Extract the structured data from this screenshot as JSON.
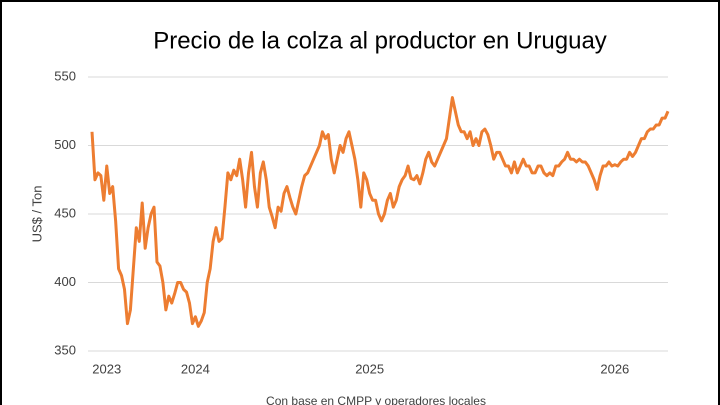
{
  "chart_data": {
    "type": "line",
    "title": "Precio de la colza al productor en Uruguay",
    "y_label": "US$ / Ton",
    "source": "Con base en CMPP y operadores locales",
    "color": "#ed7d31",
    "grid": true,
    "ylim": [
      350,
      550
    ],
    "yticks": [
      350,
      400,
      450,
      500,
      550
    ],
    "categories": [
      null,
      null,
      null,
      null,
      null,
      "2023",
      null,
      null,
      null,
      null,
      null,
      null,
      null,
      null,
      null,
      null,
      null,
      null,
      null,
      null,
      null,
      null,
      null,
      null,
      null,
      null,
      null,
      null,
      null,
      null,
      null,
      null,
      null,
      null,
      null,
      "2024",
      null,
      null,
      null,
      null,
      null,
      null,
      null,
      null,
      null,
      null,
      null,
      null,
      null,
      null,
      null,
      null,
      null,
      null,
      null,
      null,
      null,
      null,
      null,
      null,
      null,
      null,
      null,
      null,
      null,
      null,
      null,
      null,
      null,
      null,
      null,
      null,
      null,
      null,
      null,
      null,
      null,
      null,
      null,
      null,
      null,
      null,
      null,
      null,
      null,
      null,
      null,
      null,
      null,
      null,
      null,
      null,
      null,
      null,
      "2025",
      null,
      null,
      null,
      null,
      null,
      null,
      null,
      null,
      null,
      null,
      null,
      null,
      null,
      null,
      null,
      null,
      null,
      null,
      null,
      null,
      null,
      null,
      null,
      null,
      null,
      null,
      null,
      null,
      null,
      null,
      null,
      null,
      null,
      null,
      null,
      null,
      null,
      null,
      null,
      null,
      null,
      null,
      null,
      null,
      null,
      null,
      null,
      null,
      null,
      null,
      null,
      null,
      null,
      null,
      null,
      null,
      null,
      null,
      null,
      null,
      null,
      null,
      null,
      null,
      null,
      null,
      null,
      null,
      null,
      null,
      null,
      null,
      null,
      null,
      null,
      null,
      null,
      null,
      null,
      null,
      null,
      null,
      "2026",
      null,
      null,
      null,
      null,
      null,
      null,
      null,
      null,
      null,
      null,
      null,
      null,
      null,
      null,
      null,
      null,
      null,
      null
    ],
    "values": [
      510,
      475,
      480,
      478,
      460,
      485,
      465,
      470,
      445,
      410,
      405,
      395,
      370,
      380,
      410,
      440,
      430,
      458,
      425,
      440,
      450,
      455,
      415,
      412,
      400,
      380,
      390,
      385,
      392,
      400,
      400,
      395,
      393,
      385,
      370,
      375,
      368,
      372,
      378,
      400,
      410,
      430,
      440,
      430,
      432,
      455,
      480,
      475,
      482,
      478,
      490,
      475,
      455,
      480,
      495,
      470,
      455,
      480,
      488,
      475,
      455,
      448,
      440,
      455,
      452,
      465,
      470,
      462,
      455,
      450,
      460,
      470,
      478,
      480,
      485,
      490,
      495,
      500,
      510,
      505,
      508,
      490,
      480,
      490,
      500,
      495,
      505,
      510,
      500,
      490,
      475,
      455,
      480,
      475,
      465,
      460,
      460,
      450,
      445,
      450,
      460,
      465,
      455,
      460,
      470,
      475,
      478,
      485,
      476,
      475,
      478,
      472,
      480,
      490,
      495,
      488,
      485,
      490,
      495,
      500,
      505,
      520,
      535,
      525,
      515,
      510,
      510,
      505,
      510,
      500,
      505,
      500,
      510,
      512,
      508,
      500,
      490,
      495,
      495,
      490,
      485,
      485,
      480,
      488,
      480,
      485,
      490,
      485,
      485,
      480,
      480,
      485,
      485,
      480,
      478,
      480,
      478,
      485,
      485,
      488,
      490,
      495,
      490,
      490,
      488,
      490,
      488,
      488,
      485,
      480,
      475,
      468,
      478,
      485,
      485,
      488,
      485,
      486,
      485,
      488,
      490,
      490,
      495,
      492,
      495,
      500,
      505,
      505,
      510,
      512,
      512,
      515,
      515,
      520,
      520,
      525
    ]
  }
}
